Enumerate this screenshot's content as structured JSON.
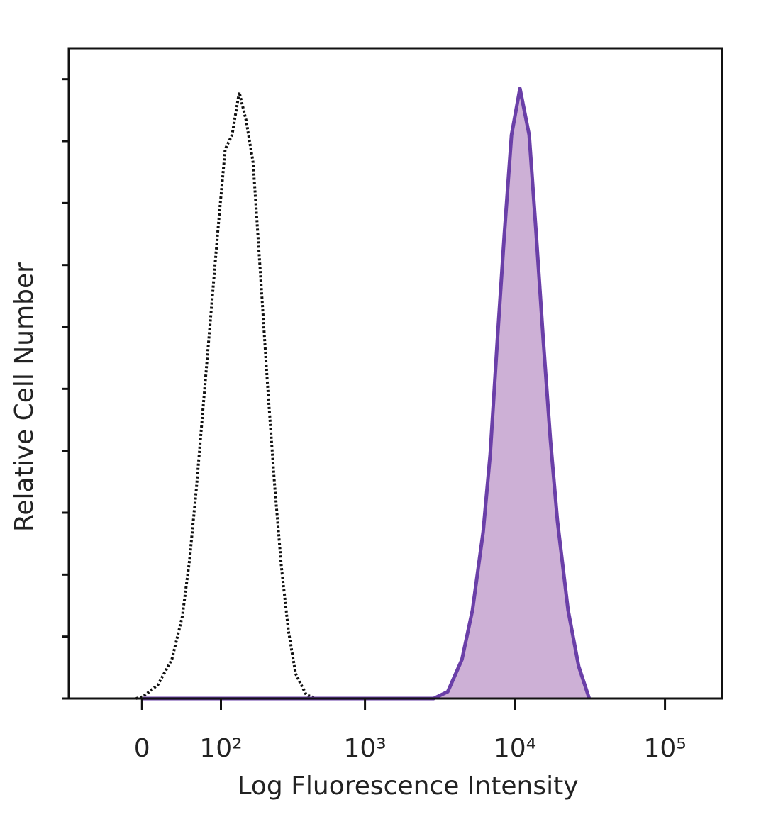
{
  "chart_data": {
    "type": "histogram-overlay",
    "xlabel": "Log Fluorescence Intensity",
    "ylabel": "Relative Cell Number",
    "xscale": "biexponential",
    "xlim": [
      -90,
      240000
    ],
    "xticks": [
      0,
      {
        "value": 100,
        "label": "10²"
      },
      {
        "value": 1000,
        "label": "10³"
      },
      {
        "value": 10000,
        "label": "10⁴"
      },
      {
        "value": 100000,
        "label": "10⁵"
      }
    ],
    "ylim": [
      0,
      105
    ],
    "yticks": [
      0,
      10,
      20,
      30,
      40,
      50,
      60,
      70,
      80,
      90,
      100
    ],
    "series": [
      {
        "color": "#111111",
        "line_style": "dotted",
        "fill": "none",
        "x": [
          -6,
          1,
          16,
          31,
          43,
          52,
          61,
          72,
          83,
          95,
          108,
          122,
          138,
          155,
          174,
          195,
          219,
          245,
          274,
          306,
          342,
          404,
          476
        ],
        "values": [
          0,
          0.3,
          2.2,
          6.3,
          13.2,
          22.3,
          33.8,
          48.7,
          62.4,
          76.1,
          88.7,
          91.0,
          97.9,
          93.3,
          86.5,
          69.3,
          51.0,
          34.9,
          21.2,
          10.9,
          4.0,
          0.6,
          0
        ]
      },
      {
        "color": "#6a3fa8",
        "line_style": "solid",
        "fill": "#cdb0d6",
        "x": [
          1,
          2871,
          3567,
          4431,
          5215,
          6139,
          6843,
          7628,
          8504,
          9483,
          10800,
          12435,
          13864,
          15450,
          17230,
          19210,
          22600,
          26600,
          31290
        ],
        "values": [
          0,
          0,
          1.1,
          6.3,
          14.3,
          26.9,
          39.5,
          57.8,
          75.0,
          91.0,
          98.5,
          91.0,
          75.0,
          57.8,
          41.8,
          28.6,
          14.3,
          5.2,
          0
        ]
      }
    ]
  }
}
